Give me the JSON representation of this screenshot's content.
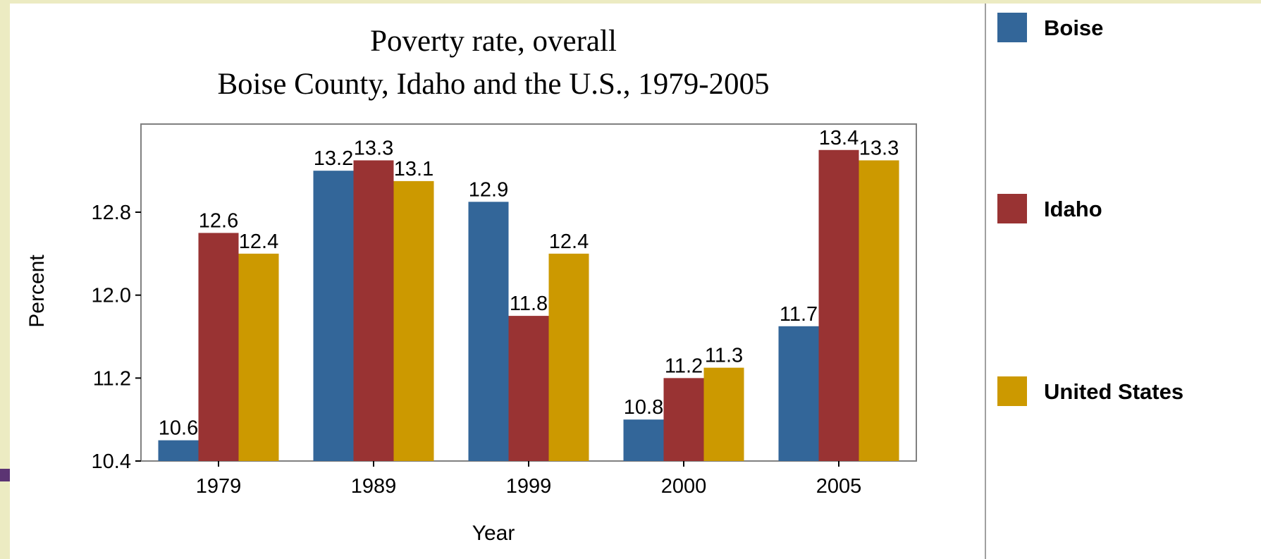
{
  "chart_data": {
    "type": "bar",
    "title": "Poverty rate, overall",
    "subtitle": "Boise County, Idaho and the U.S., 1979-2005",
    "xlabel": "Year",
    "ylabel": "Percent",
    "ylim": [
      10.4,
      13.65
    ],
    "yticks": [
      "10.4",
      "11.2",
      "12.0",
      "12.8"
    ],
    "categories": [
      "1979",
      "1989",
      "1999",
      "2000",
      "2005"
    ],
    "series": [
      {
        "name": "Boise",
        "color": "#336699",
        "values": [
          10.6,
          13.2,
          12.9,
          10.8,
          11.7
        ],
        "labels": [
          "10.6",
          "13.2",
          "12.9",
          "10.8",
          "11.7"
        ]
      },
      {
        "name": "Idaho",
        "color": "#993333",
        "values": [
          12.6,
          13.3,
          11.8,
          11.2,
          13.4
        ],
        "labels": [
          "12.6",
          "13.3",
          "11.8",
          "11.2",
          "13.4"
        ]
      },
      {
        "name": "United States",
        "color": "#cc9900",
        "values": [
          12.4,
          13.1,
          12.4,
          11.3,
          13.3
        ],
        "labels": [
          "12.4",
          "13.1",
          "12.4",
          "11.3",
          "13.3"
        ]
      }
    ],
    "grid": false,
    "legend_position": "right"
  }
}
